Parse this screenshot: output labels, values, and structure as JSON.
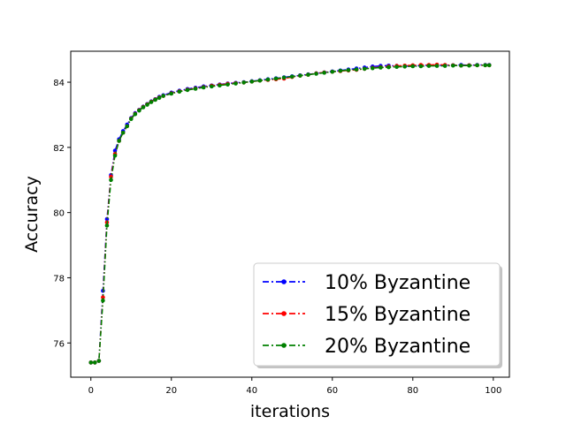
{
  "chart_data": {
    "type": "line",
    "title": "",
    "xlabel": "iterations",
    "ylabel": "Accuracy",
    "xlim": [
      -5,
      104
    ],
    "ylim": [
      74.95,
      84.95
    ],
    "xticks": [
      0,
      20,
      40,
      60,
      80,
      100
    ],
    "yticks": [
      76,
      78,
      80,
      82,
      84
    ],
    "grid": false,
    "legend_position": "lower-right",
    "series": [
      {
        "name": "10% Byzantine",
        "color": "#0000ff",
        "points": [
          [
            0,
            75.4
          ],
          [
            1,
            75.4
          ],
          [
            2,
            75.45
          ],
          [
            3,
            77.6
          ],
          [
            4,
            79.8
          ],
          [
            5,
            81.15
          ],
          [
            6,
            81.9
          ],
          [
            7,
            82.25
          ],
          [
            8,
            82.5
          ],
          [
            9,
            82.7
          ],
          [
            10,
            82.9
          ],
          [
            11,
            83.05
          ],
          [
            12,
            83.15
          ],
          [
            13,
            83.25
          ],
          [
            14,
            83.33
          ],
          [
            15,
            83.41
          ],
          [
            16,
            83.48
          ],
          [
            17,
            83.55
          ],
          [
            18,
            83.6
          ],
          [
            20,
            83.68
          ],
          [
            22,
            83.74
          ],
          [
            24,
            83.79
          ],
          [
            26,
            83.83
          ],
          [
            28,
            83.87
          ],
          [
            30,
            83.9
          ],
          [
            32,
            83.93
          ],
          [
            34,
            83.96
          ],
          [
            36,
            83.98
          ],
          [
            38,
            84.0
          ],
          [
            40,
            84.03
          ],
          [
            42,
            84.06
          ],
          [
            44,
            84.09
          ],
          [
            46,
            84.12
          ],
          [
            48,
            84.15
          ],
          [
            50,
            84.18
          ],
          [
            52,
            84.21
          ],
          [
            54,
            84.24
          ],
          [
            56,
            84.27
          ],
          [
            58,
            84.3
          ],
          [
            60,
            84.33
          ],
          [
            62,
            84.36
          ],
          [
            64,
            84.39
          ],
          [
            66,
            84.42
          ],
          [
            68,
            84.45
          ],
          [
            70,
            84.48
          ],
          [
            72,
            84.5
          ],
          [
            74,
            84.51
          ],
          [
            76,
            84.5
          ],
          [
            78,
            84.49
          ],
          [
            80,
            84.5
          ],
          [
            82,
            84.51
          ],
          [
            84,
            84.52
          ],
          [
            86,
            84.51
          ],
          [
            88,
            84.52
          ],
          [
            90,
            84.52
          ],
          [
            92,
            84.53
          ],
          [
            94,
            84.52
          ],
          [
            96,
            84.53
          ],
          [
            98,
            84.53
          ],
          [
            99,
            84.53
          ]
        ]
      },
      {
        "name": "15% Byzantine",
        "color": "#ff0000",
        "points": [
          [
            0,
            75.4
          ],
          [
            1,
            75.4
          ],
          [
            2,
            75.45
          ],
          [
            3,
            77.4
          ],
          [
            4,
            79.7
          ],
          [
            5,
            81.1
          ],
          [
            6,
            81.8
          ],
          [
            7,
            82.2
          ],
          [
            8,
            82.45
          ],
          [
            9,
            82.65
          ],
          [
            10,
            82.88
          ],
          [
            11,
            83.03
          ],
          [
            12,
            83.14
          ],
          [
            13,
            83.24
          ],
          [
            14,
            83.32
          ],
          [
            15,
            83.4
          ],
          [
            16,
            83.47
          ],
          [
            17,
            83.53
          ],
          [
            18,
            83.58
          ],
          [
            20,
            83.66
          ],
          [
            22,
            83.72
          ],
          [
            24,
            83.77
          ],
          [
            26,
            83.81
          ],
          [
            28,
            83.85
          ],
          [
            30,
            83.89
          ],
          [
            32,
            83.92
          ],
          [
            34,
            83.95
          ],
          [
            36,
            83.97
          ],
          [
            38,
            83.99
          ],
          [
            40,
            84.02
          ],
          [
            42,
            84.05
          ],
          [
            44,
            84.07
          ],
          [
            46,
            84.09
          ],
          [
            48,
            84.11
          ],
          [
            50,
            84.16
          ],
          [
            52,
            84.2
          ],
          [
            54,
            84.23
          ],
          [
            56,
            84.27
          ],
          [
            58,
            84.3
          ],
          [
            60,
            84.32
          ],
          [
            62,
            84.34
          ],
          [
            64,
            84.36
          ],
          [
            66,
            84.38
          ],
          [
            68,
            84.41
          ],
          [
            70,
            84.44
          ],
          [
            72,
            84.46
          ],
          [
            74,
            84.48
          ],
          [
            76,
            84.5
          ],
          [
            78,
            84.51
          ],
          [
            80,
            84.52
          ],
          [
            82,
            84.53
          ],
          [
            84,
            84.53
          ],
          [
            86,
            84.54
          ],
          [
            88,
            84.53
          ],
          [
            90,
            84.52
          ],
          [
            92,
            84.51
          ],
          [
            94,
            84.52
          ],
          [
            96,
            84.52
          ],
          [
            98,
            84.52
          ],
          [
            99,
            84.52
          ]
        ]
      },
      {
        "name": "20% Byzantine",
        "color": "#008000",
        "points": [
          [
            0,
            75.4
          ],
          [
            1,
            75.4
          ],
          [
            2,
            75.45
          ],
          [
            3,
            77.3
          ],
          [
            4,
            79.6
          ],
          [
            5,
            81.0
          ],
          [
            6,
            81.75
          ],
          [
            7,
            82.2
          ],
          [
            8,
            82.45
          ],
          [
            9,
            82.65
          ],
          [
            10,
            82.87
          ],
          [
            11,
            83.02
          ],
          [
            12,
            83.13
          ],
          [
            13,
            83.23
          ],
          [
            14,
            83.31
          ],
          [
            15,
            83.39
          ],
          [
            16,
            83.46
          ],
          [
            17,
            83.52
          ],
          [
            18,
            83.58
          ],
          [
            20,
            83.65
          ],
          [
            22,
            83.71
          ],
          [
            24,
            83.76
          ],
          [
            26,
            83.8
          ],
          [
            28,
            83.84
          ],
          [
            30,
            83.87
          ],
          [
            32,
            83.9
          ],
          [
            34,
            83.93
          ],
          [
            36,
            83.96
          ],
          [
            38,
            83.99
          ],
          [
            40,
            84.02
          ],
          [
            42,
            84.05
          ],
          [
            44,
            84.08
          ],
          [
            46,
            84.11
          ],
          [
            48,
            84.14
          ],
          [
            50,
            84.17
          ],
          [
            52,
            84.2
          ],
          [
            54,
            84.23
          ],
          [
            56,
            84.26
          ],
          [
            58,
            84.29
          ],
          [
            60,
            84.32
          ],
          [
            62,
            84.35
          ],
          [
            64,
            84.37
          ],
          [
            66,
            84.39
          ],
          [
            68,
            84.41
          ],
          [
            70,
            84.43
          ],
          [
            72,
            84.45
          ],
          [
            74,
            84.46
          ],
          [
            76,
            84.47
          ],
          [
            78,
            84.48
          ],
          [
            80,
            84.49
          ],
          [
            82,
            84.49
          ],
          [
            84,
            84.5
          ],
          [
            86,
            84.5
          ],
          [
            88,
            84.5
          ],
          [
            90,
            84.51
          ],
          [
            92,
            84.51
          ],
          [
            94,
            84.51
          ],
          [
            96,
            84.52
          ],
          [
            98,
            84.52
          ],
          [
            99,
            84.52
          ]
        ]
      }
    ]
  }
}
